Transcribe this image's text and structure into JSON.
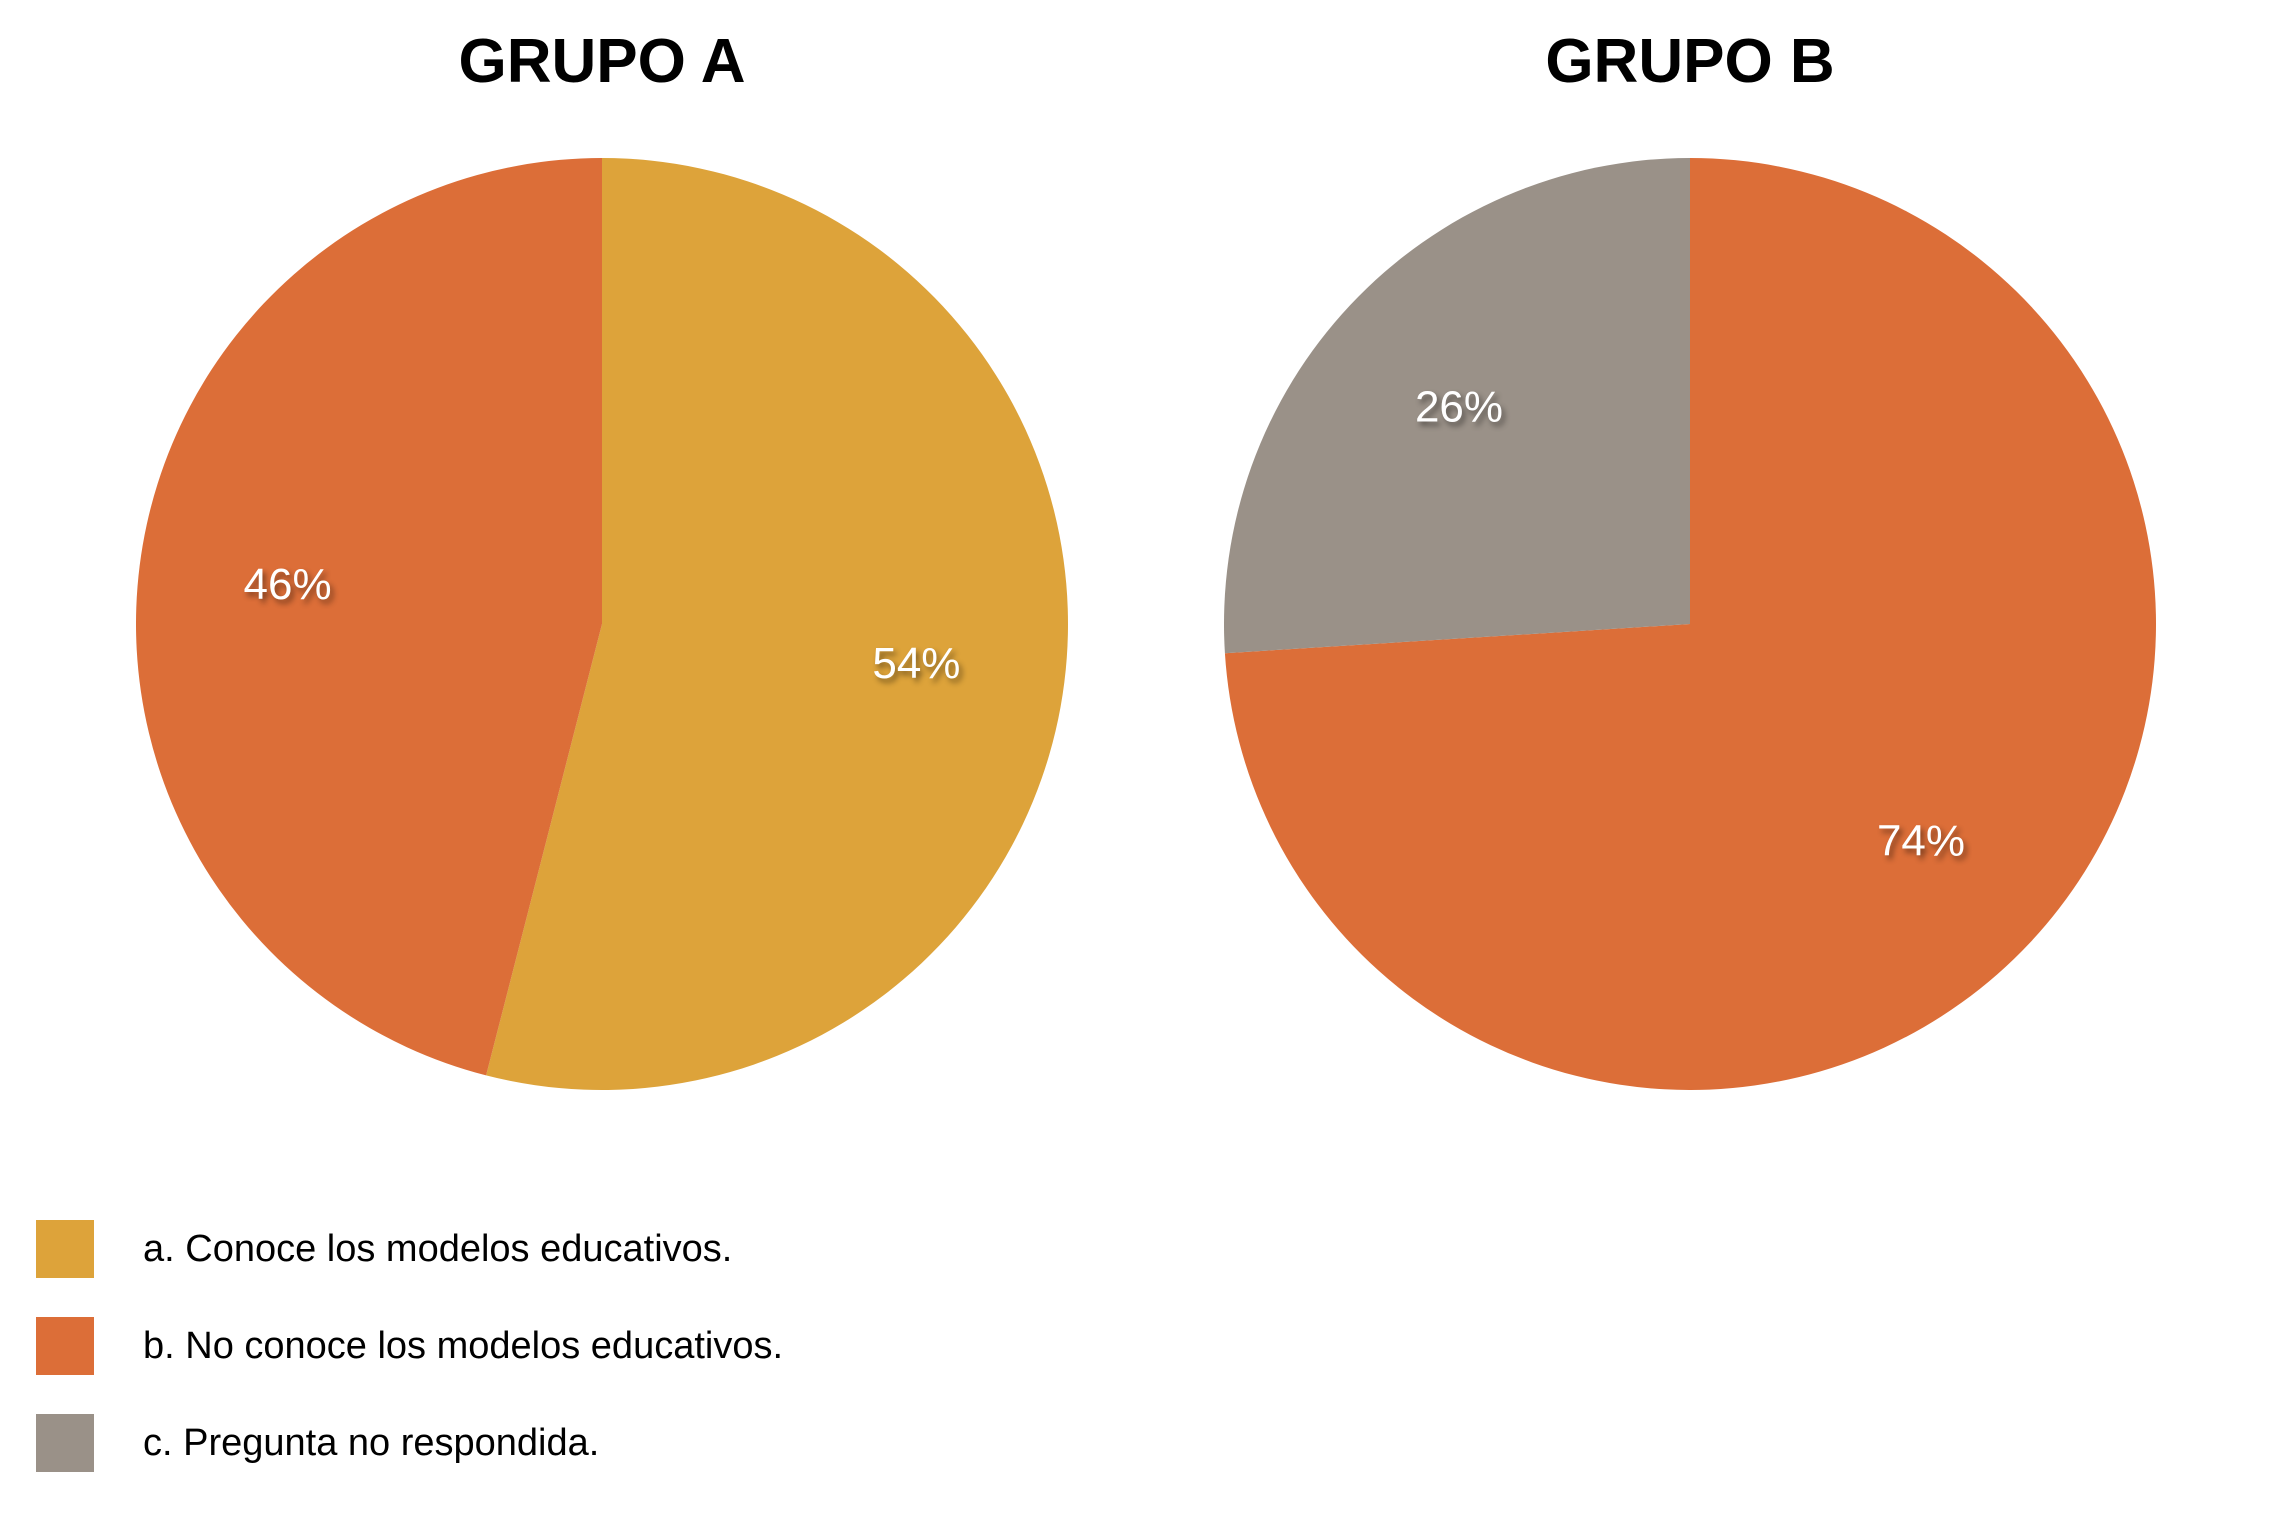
{
  "page": {
    "background_color": "#FFFFFF"
  },
  "chart_data": [
    {
      "type": "pie",
      "title": "GRUPO A",
      "categories": [
        "a. Conoce los modelos educativos.",
        "b. No conoce los modelos educativos.",
        "c. Pregunta no respondida."
      ],
      "values": [
        54,
        46,
        0
      ],
      "data_labels": [
        "54%",
        "46%",
        ""
      ],
      "colors": [
        "#DDA33A",
        "#DC6E38",
        "#9A9188"
      ],
      "data_label_color": "#FFFFFF",
      "start_angle_deg": 0,
      "direction": "clockwise",
      "label_radius_ratio": 0.68,
      "legend_position": "bottom-left"
    },
    {
      "type": "pie",
      "title": "GRUPO B",
      "categories": [
        "a. Conoce los modelos educativos.",
        "b. No conoce los modelos educativos.",
        "c. Pregunta no respondida."
      ],
      "values": [
        0,
        74,
        26
      ],
      "data_labels": [
        "",
        "74%",
        "26%"
      ],
      "colors": [
        "#DDA33A",
        "#DC6E38",
        "#9A9188"
      ],
      "data_label_color": "#FFFFFF",
      "start_angle_deg": 0,
      "direction": "clockwise",
      "label_radius_ratio": 0.68,
      "legend_position": "bottom-left"
    }
  ],
  "legend": {
    "items": [
      {
        "label": "a. Conoce los modelos educativos.",
        "color": "#DDA33A"
      },
      {
        "label": "b. No conoce los modelos educativos.",
        "color": "#DC6E38"
      },
      {
        "label": "c. Pregunta no respondida.",
        "color": "#9A9188"
      }
    ]
  }
}
